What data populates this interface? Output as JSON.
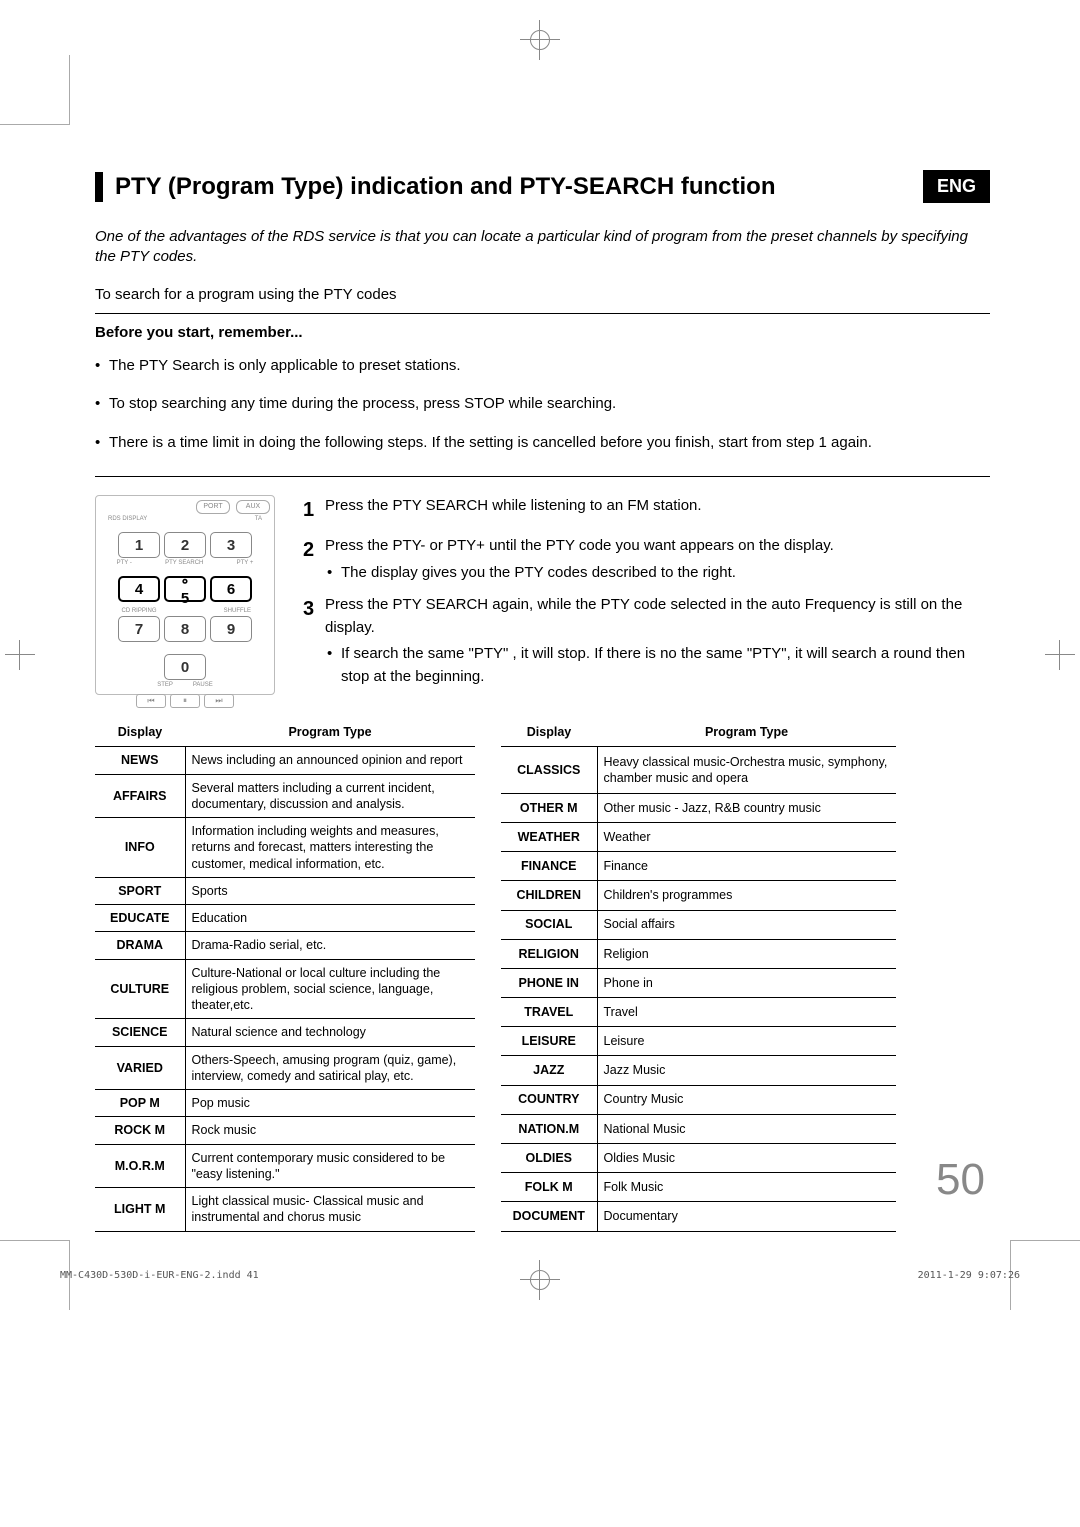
{
  "lang_badge": "ENG",
  "title": "PTY (Program Type) indication and PTY-SEARCH function",
  "intro": "One  of the advantages of the RDS service is that you can locate a particular kind of program from the preset channels by specifying the PTY codes.",
  "subheading": "To search for a program using the PTY codes",
  "before_label": "Before you start, remember...",
  "bullets": [
    "The PTY Search is only applicable to preset stations.",
    "To stop searching any time during the process, press STOP while searching.",
    "There is a time limit in doing the following steps. If the setting is cancelled before you finish, start from step 1 again."
  ],
  "remote": {
    "top_buttons": [
      "PORT",
      "AUX"
    ],
    "small_labels": [
      "RDS DISPLAY",
      "TA"
    ],
    "row1": [
      "1",
      "2",
      "3"
    ],
    "row1_labels": [
      "PTY -",
      "PTY SEARCH",
      "PTY +"
    ],
    "row2": [
      "4",
      "5",
      "6"
    ],
    "row3": [
      "7",
      "8",
      "9"
    ],
    "row3_left_label": "CD RIPPING",
    "row3_right_label": "SHUFFLE",
    "zero": "0",
    "zero_labels": [
      "STEP",
      "PAUSE"
    ],
    "transport": [
      "⏮",
      "⏸",
      "⏭"
    ]
  },
  "steps": [
    {
      "n": "1",
      "text": "Press the PTY SEARCH while listening to an FM station."
    },
    {
      "n": "2",
      "text": "Press the PTY- or PTY+ until the PTY code you want appears on the display.",
      "sub": "The display gives you the PTY codes described to the right."
    },
    {
      "n": "3",
      "text": "Press the PTY SEARCH again, while the PTY code selected in the auto Frequency is still on the display.",
      "sub": "If search the same \"PTY\" , it will stop. If there is no the same \"PTY\", it will search a round then stop at the beginning."
    }
  ],
  "table_headers": {
    "display": "Display",
    "ptype": "Program Type"
  },
  "table_left": [
    [
      "NEWS",
      "News including an announced opinion and report"
    ],
    [
      "AFFAIRS",
      "Several matters including a current incident, documentary, discussion and analysis."
    ],
    [
      "INFO",
      "Information including weights and measures, returns and forecast, matters interesting the customer, medical information, etc."
    ],
    [
      "SPORT",
      "Sports"
    ],
    [
      "EDUCATE",
      "Education"
    ],
    [
      "DRAMA",
      "Drama-Radio serial, etc."
    ],
    [
      "CULTURE",
      "Culture-National or local culture including the religious problem, social science, language, theater,etc."
    ],
    [
      "SCIENCE",
      "Natural science and technology"
    ],
    [
      "VARIED",
      "Others-Speech, amusing program (quiz, game), interview, comedy and satirical play, etc."
    ],
    [
      "POP M",
      "Pop music"
    ],
    [
      "ROCK M",
      "Rock music"
    ],
    [
      "M.O.R.M",
      "Current contemporary music considered to be \"easy listening.\""
    ],
    [
      "LIGHT M",
      "Light classical music- Classical music and instrumental and chorus music"
    ]
  ],
  "table_right": [
    [
      "CLASSICS",
      "Heavy classical  music-Orchestra music, symphony, chamber music and opera"
    ],
    [
      "OTHER M",
      "Other music - Jazz, R&B country music"
    ],
    [
      "WEATHER",
      "Weather"
    ],
    [
      "FINANCE",
      "Finance"
    ],
    [
      "CHILDREN",
      "Children's programmes"
    ],
    [
      "SOCIAL",
      "Social affairs"
    ],
    [
      "RELIGION",
      "Religion"
    ],
    [
      "PHONE IN",
      "Phone in"
    ],
    [
      "TRAVEL",
      "Travel"
    ],
    [
      "LEISURE",
      "Leisure"
    ],
    [
      "JAZZ",
      "Jazz Music"
    ],
    [
      "COUNTRY",
      "Country Music"
    ],
    [
      "NATION.M",
      "National Music"
    ],
    [
      "OLDIES",
      "Oldies Music"
    ],
    [
      "FOLK M",
      "Folk Music"
    ],
    [
      "DOCUMENT",
      "Documentary"
    ]
  ],
  "page_number": "50",
  "footer_left": "MM-C430D-530D-i-EUR-ENG-2.indd   41",
  "footer_right": "2011-1-29   9:07:26",
  "colors": {
    "text": "#000000",
    "bg": "#ffffff",
    "faded": "#888888"
  }
}
